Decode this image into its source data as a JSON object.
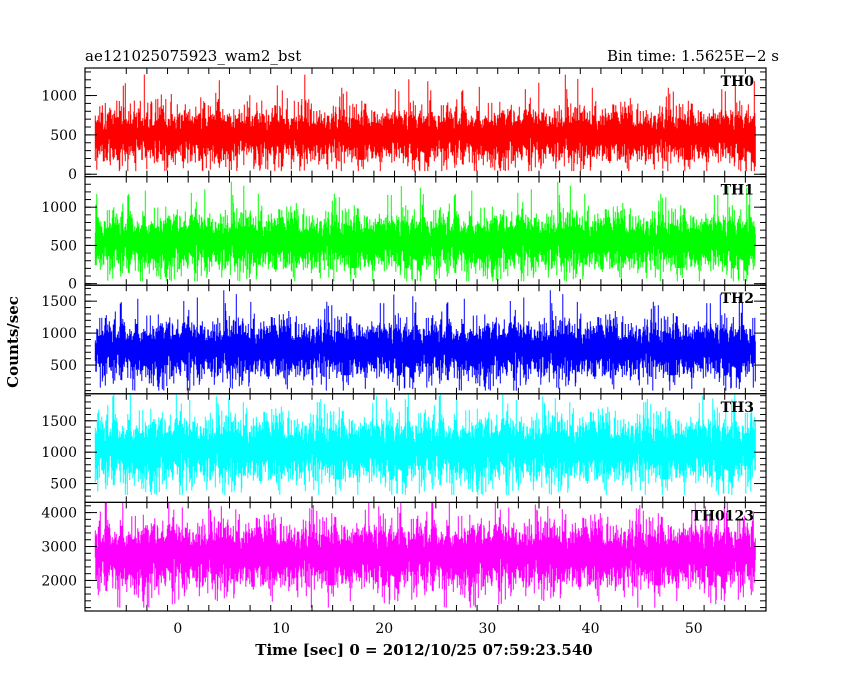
{
  "chart_data": {
    "type": "line",
    "title": "ae121025075923_wam2_bst",
    "subtitle": "Bin time: 1.5625E−2 s",
    "xlabel": "Time [sec] 0 = 2012/10/25 07:59:23.540",
    "ylabel": "Counts/sec",
    "xlim": [
      -9,
      57
    ],
    "x_ticks": [
      0,
      10,
      20,
      30,
      40,
      50
    ],
    "x_tick_labels": [
      "0",
      "10",
      "20",
      "30",
      "40",
      "50"
    ],
    "data_x_range": [
      -8,
      56
    ],
    "bin_time": 0.015625,
    "series": [
      {
        "name": "TH0",
        "color": "#ff0000",
        "ylim": [
          -30,
          1350
        ],
        "yticks": [
          0,
          500,
          1000
        ],
        "ytick_labels": [
          "0",
          "500",
          "1000"
        ],
        "baseline": 0,
        "mean": 500,
        "typical_range": [
          100,
          950
        ],
        "max_spike": 1340,
        "min_dip": 40
      },
      {
        "name": "TH1",
        "color": "#00ff00",
        "ylim": [
          -20,
          1400
        ],
        "yticks": [
          0,
          500,
          1000
        ],
        "ytick_labels": [
          "0",
          "500",
          "1000"
        ],
        "baseline": 0,
        "mean": 550,
        "typical_range": [
          120,
          1050
        ],
        "max_spike": 1400,
        "min_dip": 30
      },
      {
        "name": "TH2",
        "color": "#0000ff",
        "ylim": [
          50,
          1750
        ],
        "yticks": [
          500,
          1000,
          1500
        ],
        "ytick_labels": [
          "500",
          "1000",
          "1500"
        ],
        "baseline": 50,
        "mean": 750,
        "typical_range": [
          200,
          1300
        ],
        "max_spike": 1750,
        "min_dip": 100
      },
      {
        "name": "TH3",
        "color": "#00ffff",
        "ylim": [
          200,
          1930
        ],
        "yticks": [
          500,
          1000,
          1500
        ],
        "ytick_labels": [
          "500",
          "1000",
          "1500"
        ],
        "baseline": 200,
        "mean": 1050,
        "typical_range": [
          400,
          1700
        ],
        "max_spike": 1930,
        "min_dip": 320
      },
      {
        "name": "TH0123",
        "color": "#ff00ff",
        "ylim": [
          1100,
          4300
        ],
        "yticks": [
          2000,
          3000,
          4000
        ],
        "ytick_labels": [
          "2000",
          "3000",
          "4000"
        ],
        "baseline": 1100,
        "mean": 2750,
        "typical_range": [
          1500,
          3900
        ],
        "max_spike": 4300,
        "min_dip": 1200
      }
    ]
  }
}
